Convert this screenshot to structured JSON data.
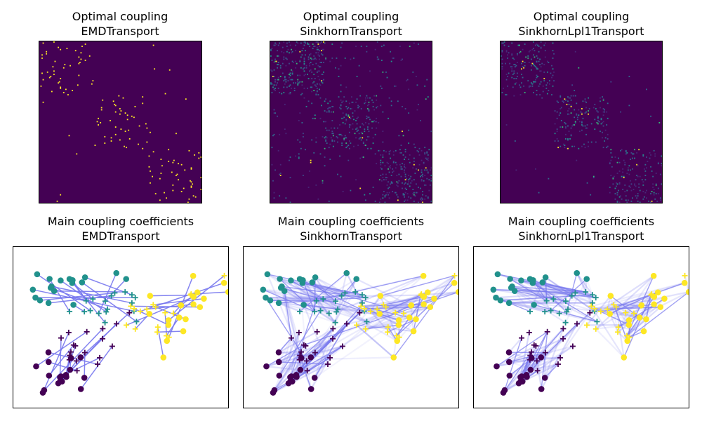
{
  "chart_data": [
    {
      "type": "heatmap",
      "title": "Optimal coupling",
      "subtitle": "EMDTransport",
      "colormap": "viridis",
      "rows": 150,
      "cols": 150,
      "block_structure": [
        [
          0,
          50
        ],
        [
          50,
          100
        ],
        [
          100,
          150
        ]
      ],
      "density": "sparse"
    },
    {
      "type": "heatmap",
      "title": "Optimal coupling",
      "subtitle": "SinkhornTransport",
      "colormap": "viridis",
      "rows": 150,
      "cols": 150,
      "block_structure": [
        [
          0,
          50
        ],
        [
          50,
          100
        ],
        [
          100,
          150
        ]
      ],
      "density": "diffuse"
    },
    {
      "type": "heatmap",
      "title": "Optimal coupling",
      "subtitle": "SinkhornLpl1Transport",
      "colormap": "viridis",
      "rows": 150,
      "cols": 150,
      "block_structure": [
        [
          0,
          50
        ],
        [
          50,
          100
        ],
        [
          100,
          150
        ]
      ],
      "density": "block-sparse"
    },
    {
      "type": "scatter",
      "title": "Main coupling coefficients",
      "subtitle": "EMDTransport",
      "source_marker": "circle",
      "target_marker": "plus",
      "class_colors": [
        "#440154",
        "#21918c",
        "#fde725"
      ],
      "line_color": "#7777ee",
      "source_clusters": [
        {
          "class": 0,
          "center": [
            -2.2,
            -1.9
          ],
          "spread": [
            0.75,
            0.55
          ]
        },
        {
          "class": 1,
          "center": [
            -2.0,
            1.7
          ],
          "spread": [
            0.75,
            0.6
          ]
        },
        {
          "class": 2,
          "center": [
            2.3,
            0.4
          ],
          "spread": [
            0.7,
            0.9
          ]
        }
      ],
      "target_clusters": [
        {
          "class": 0,
          "center": [
            -1.0,
            -0.8
          ],
          "spread": [
            0.8,
            0.5
          ]
        },
        {
          "class": 1,
          "center": [
            -0.6,
            1.0
          ],
          "spread": [
            0.75,
            0.5
          ]
        },
        {
          "class": 2,
          "center": [
            1.4,
            0.6
          ],
          "spread": [
            0.85,
            0.65
          ]
        }
      ],
      "xlim": [
        -4,
        4
      ],
      "ylim": [
        -3.5,
        3.5
      ],
      "links": "sparse"
    },
    {
      "type": "scatter",
      "title": "Main coupling coefficients",
      "subtitle": "SinkhornTransport",
      "source_marker": "circle",
      "target_marker": "plus",
      "class_colors": [
        "#440154",
        "#21918c",
        "#fde725"
      ],
      "line_color": "#7777ee",
      "xlim": [
        -4,
        4
      ],
      "ylim": [
        -3.5,
        3.5
      ],
      "links": "diffuse"
    },
    {
      "type": "scatter",
      "title": "Main coupling coefficients",
      "subtitle": "SinkhornLpl1Transport",
      "source_marker": "circle",
      "target_marker": "plus",
      "class_colors": [
        "#440154",
        "#21918c",
        "#fde725"
      ],
      "line_color": "#7777ee",
      "xlim": [
        -4,
        4
      ],
      "ylim": [
        -3.5,
        3.5
      ],
      "links": "class-restricted"
    }
  ]
}
